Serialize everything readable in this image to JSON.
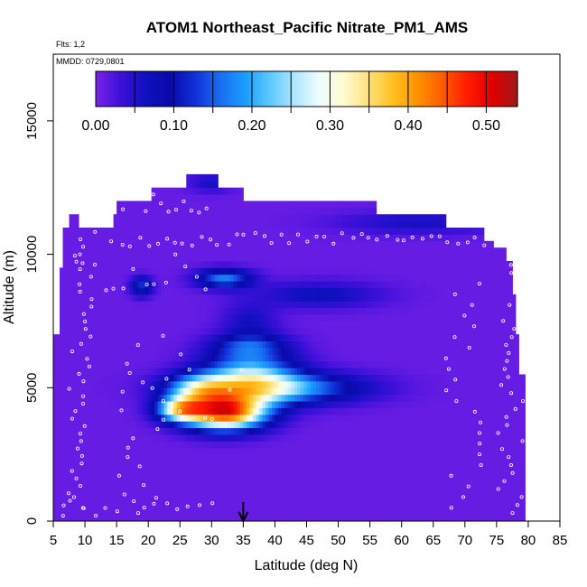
{
  "chart_data": {
    "type": "heatmap",
    "title": "ATOM1 Northeast_Pacific Nitrate_PM1_AMS",
    "flights_label": "Flts: 1,2",
    "dates_label": "MMDD: 0729,0801",
    "xlabel": "Latitude (deg N)",
    "ylabel": "Altitude (m)",
    "xlim": [
      5,
      85
    ],
    "ylim": [
      0,
      17500
    ],
    "x_ticks": [
      "5",
      "10",
      "15",
      "20",
      "25",
      "30",
      "35",
      "40",
      "45",
      "50",
      "55",
      "60",
      "65",
      "70",
      "75",
      "80",
      "85"
    ],
    "y_ticks": [
      "0",
      "5000",
      "10000",
      "15000"
    ],
    "colorbar": {
      "min": 0.0,
      "max": 0.54,
      "ticks": [
        "0.00",
        "0.10",
        "0.20",
        "0.30",
        "0.40",
        "0.50"
      ],
      "colors": [
        "#7a22e8",
        "#3d10d9",
        "#1010c0",
        "#0a0aa8",
        "#1030d8",
        "#1a6cf0",
        "#1a9cff",
        "#5ac8ff",
        "#aee6ff",
        "#eefcff",
        "#fffbd0",
        "#ffe07a",
        "#ffc020",
        "#ff9000",
        "#ff5a00",
        "#ff1a00",
        "#e00000",
        "#a01818"
      ]
    },
    "marker_latitude": 35,
    "field": {
      "baseline": 0.01,
      "blobs": [
        {
          "lat": 32,
          "alt": 4100,
          "slat": 4.5,
          "salt": 450,
          "value": 0.46
        },
        {
          "lat": 25,
          "alt": 4200,
          "slat": 2.5,
          "salt": 300,
          "value": 0.25
        },
        {
          "lat": 40,
          "alt": 5000,
          "slat": 9.0,
          "salt": 400,
          "value": 0.2
        },
        {
          "lat": 36,
          "alt": 5500,
          "slat": 5.0,
          "salt": 700,
          "value": 0.2
        },
        {
          "lat": 28,
          "alt": 4950,
          "slat": 3.5,
          "salt": 400,
          "value": 0.18
        },
        {
          "lat": 36,
          "alt": 6600,
          "slat": 4.0,
          "salt": 300,
          "value": 0.09
        },
        {
          "lat": 32,
          "alt": 9100,
          "slat": 3.0,
          "salt": 250,
          "value": 0.16
        },
        {
          "lat": 19,
          "alt": 8800,
          "slat": 1.2,
          "salt": 250,
          "value": 0.12
        },
        {
          "lat": 47,
          "alt": 8500,
          "slat": 7.0,
          "salt": 350,
          "value": 0.06
        },
        {
          "lat": 63,
          "alt": 11200,
          "slat": 9.0,
          "salt": 300,
          "value": 0.05
        },
        {
          "lat": 30,
          "alt": 12700,
          "slat": 2.5,
          "salt": 250,
          "value": 0.05
        },
        {
          "lat": 36,
          "alt": 7500,
          "slat": 3.0,
          "salt": 500,
          "value": 0.05
        }
      ]
    }
  }
}
